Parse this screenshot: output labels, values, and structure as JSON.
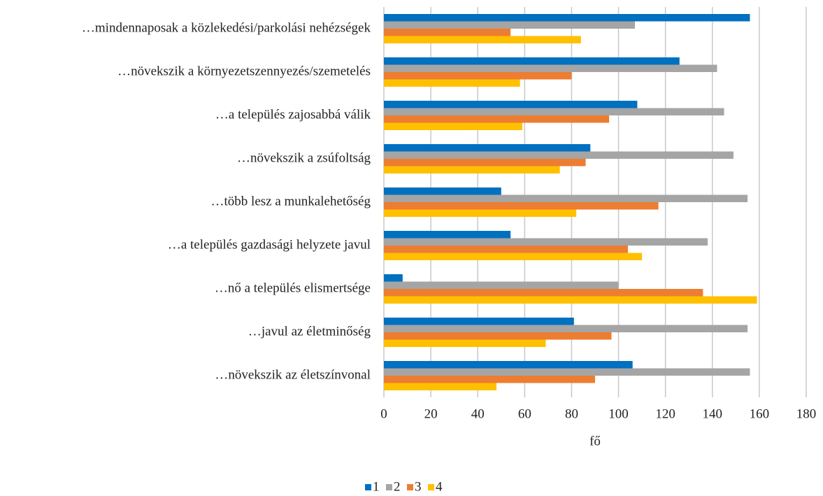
{
  "chart_data": {
    "type": "bar",
    "orientation": "horizontal",
    "x_label": "fő",
    "categories": [
      "…mindennaposak a közlekedési/parkolási nehézségek",
      "…növekszik a környezetszennyezés/szemetelés",
      "…a település zajosabbá válik",
      "…növekszik a zsúfoltság",
      "…több lesz a munkalehetőség",
      "…a település gazdasági helyzete javul",
      "…nő a település elismertsége",
      "…javul az életminőség",
      "…növekszik az életszínvonal"
    ],
    "series": [
      {
        "name": "1",
        "color": "#0070c0",
        "values": [
          156,
          126,
          108,
          88,
          50,
          54,
          8,
          81,
          106
        ]
      },
      {
        "name": "2",
        "color": "#a5a5a5",
        "values": [
          107,
          142,
          145,
          149,
          155,
          138,
          100,
          155,
          156
        ]
      },
      {
        "name": "3",
        "color": "#ed7d31",
        "values": [
          54,
          80,
          96,
          86,
          117,
          104,
          136,
          97,
          90
        ]
      },
      {
        "name": "4",
        "color": "#ffc000",
        "values": [
          84,
          58,
          59,
          75,
          82,
          110,
          159,
          69,
          48
        ]
      }
    ],
    "xlim": [
      0,
      180
    ],
    "xticks": [
      0,
      20,
      40,
      60,
      80,
      100,
      120,
      140,
      160,
      180
    ],
    "grid": true,
    "legend": "bottom"
  }
}
